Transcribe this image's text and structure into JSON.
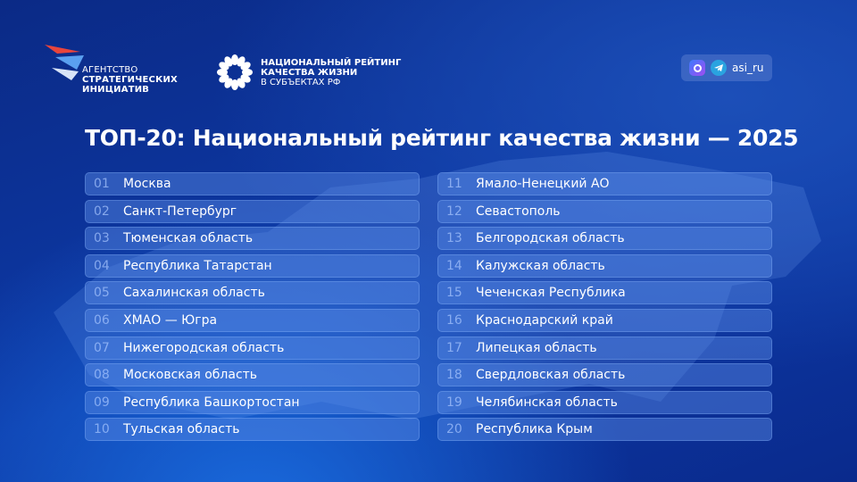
{
  "header": {
    "asi_logo": {
      "line1": "АГЕНТСТВО",
      "line2": "СТРАТЕГИЧЕСКИХ",
      "line3": "ИНИЦИАТИВ"
    },
    "rating_logo": {
      "line1": "НАЦИОНАЛЬНЫЙ РЕЙТИНГ",
      "line2": "КАЧЕСТВА ЖИЗНИ",
      "line3": "В СУБЪЕКТАХ РФ"
    },
    "social": {
      "handle": "asi_ru",
      "icons": [
        "max-messenger-icon",
        "telegram-icon"
      ]
    }
  },
  "title": "ТОП-20: Национальный рейтинг качества жизни — 2025",
  "ranking": [
    {
      "rank": "01",
      "region": "Москва"
    },
    {
      "rank": "02",
      "region": "Санкт-Петербург"
    },
    {
      "rank": "03",
      "region": "Тюменская область"
    },
    {
      "rank": "04",
      "region": "Республика Татарстан"
    },
    {
      "rank": "05",
      "region": "Сахалинская область"
    },
    {
      "rank": "06",
      "region": "ХМАО — Югра"
    },
    {
      "rank": "07",
      "region": "Нижегородская область"
    },
    {
      "rank": "08",
      "region": "Московская область"
    },
    {
      "rank": "09",
      "region": "Республика Башкортостан"
    },
    {
      "rank": "10",
      "region": "Тульская область"
    },
    {
      "rank": "11",
      "region": "Ямало-Ненецкий АО"
    },
    {
      "rank": "12",
      "region": "Севастополь"
    },
    {
      "rank": "13",
      "region": "Белгородская область"
    },
    {
      "rank": "14",
      "region": "Калужская область"
    },
    {
      "rank": "15",
      "region": "Чеченская Республика"
    },
    {
      "rank": "16",
      "region": "Краснодарский край"
    },
    {
      "rank": "17",
      "region": "Липецкая область"
    },
    {
      "rank": "18",
      "region": "Свердловская область"
    },
    {
      "rank": "19",
      "region": "Челябинская область"
    },
    {
      "rank": "20",
      "region": "Республика Крым"
    }
  ]
}
